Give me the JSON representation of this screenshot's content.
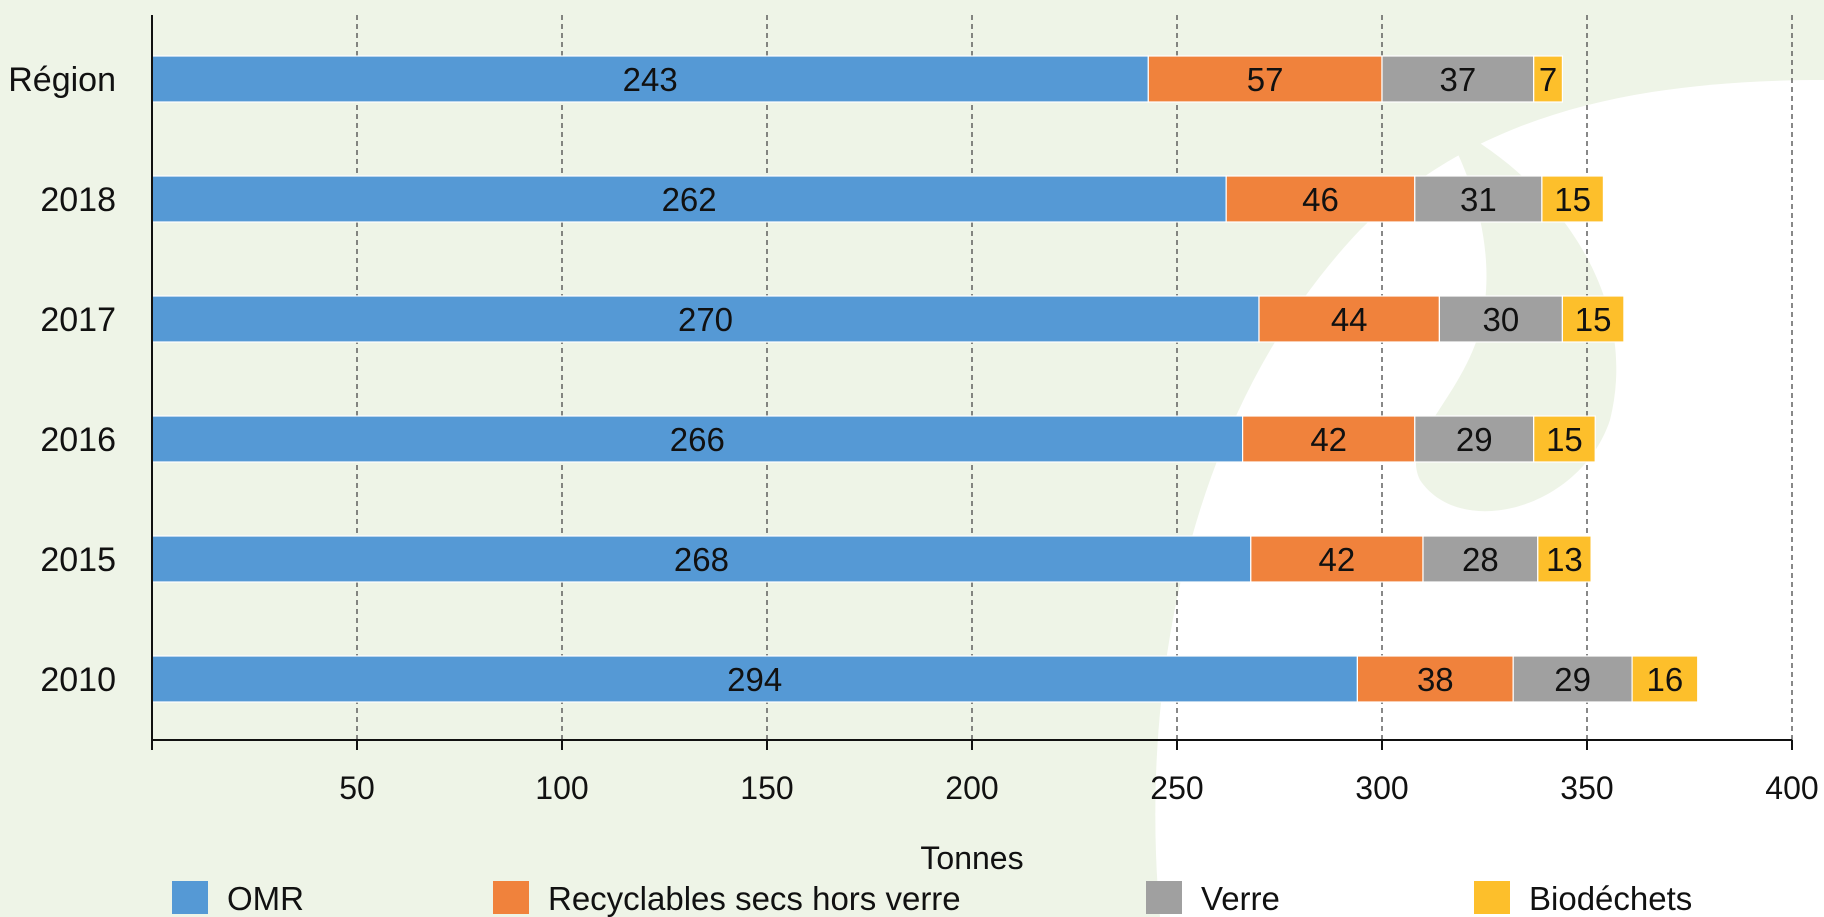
{
  "chart_data": {
    "type": "bar",
    "orientation": "horizontal",
    "stacked": true,
    "title": "",
    "xlabel": "Tonnes",
    "ylabel": "",
    "xlim": [
      0,
      400
    ],
    "x_ticks": [
      50,
      100,
      150,
      200,
      250,
      300,
      350,
      400
    ],
    "grid": "vertical dashed",
    "legend_position": "bottom",
    "categories": [
      "Région",
      "2018",
      "2017",
      "2016",
      "2015",
      "2010"
    ],
    "series": [
      {
        "name": "OMR",
        "color": "#5599d5",
        "values": [
          243,
          262,
          270,
          266,
          268,
          294
        ]
      },
      {
        "name": "Recyclables secs hors verre",
        "color": "#f0823c",
        "values": [
          57,
          46,
          44,
          42,
          42,
          38
        ]
      },
      {
        "name": "Verre",
        "color": "#a0a0a0",
        "values": [
          37,
          31,
          30,
          29,
          28,
          29
        ]
      },
      {
        "name": "Biodéchets",
        "color": "#fdbf2b",
        "values": [
          7,
          15,
          15,
          15,
          13,
          16
        ]
      }
    ]
  }
}
